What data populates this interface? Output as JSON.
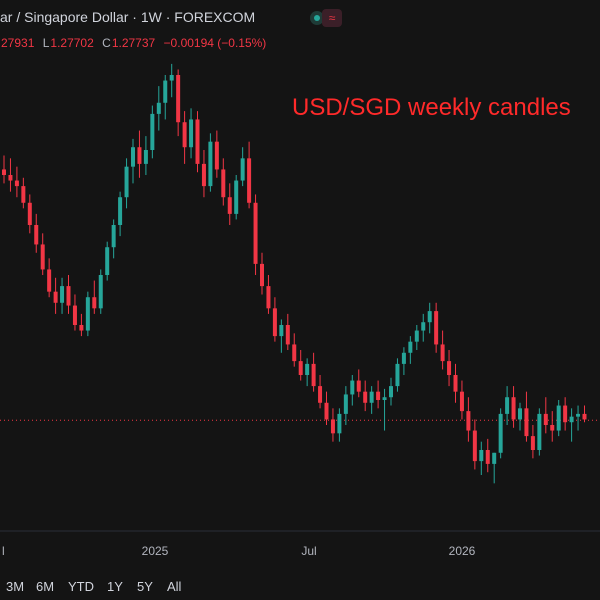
{
  "header": {
    "title": "ar / Singapore Dollar · 1W · FOREXCOM",
    "wave_icon": "≈",
    "ohlc": {
      "high_label": "",
      "high": "27931",
      "low_label": "L",
      "low": "1.27702",
      "close_label": "C",
      "close": "1.27737",
      "change": "−0.00194 (−0.15%)"
    }
  },
  "annotation": "USD/SGD weekly candles",
  "colors": {
    "up": "#26a69a",
    "down": "#f23645",
    "annotation": "#ff2a2a",
    "background": "#141414"
  },
  "range_buttons": [
    "3M",
    "6M",
    "YTD",
    "1Y",
    "5Y",
    "All"
  ],
  "chart_data": {
    "type": "candlestick",
    "x_tick_labels": [
      "l",
      "2025",
      "Jul",
      "2026"
    ],
    "series": [
      {
        "candles": [
          [
            1.348,
            1.353,
            1.343,
            1.346
          ],
          [
            1.346,
            1.352,
            1.34,
            1.344
          ],
          [
            1.344,
            1.349,
            1.338,
            1.342
          ],
          [
            1.342,
            1.345,
            1.334,
            1.336
          ],
          [
            1.336,
            1.339,
            1.325,
            1.328
          ],
          [
            1.328,
            1.332,
            1.318,
            1.321
          ],
          [
            1.321,
            1.325,
            1.31,
            1.312
          ],
          [
            1.312,
            1.316,
            1.302,
            1.304
          ],
          [
            1.304,
            1.309,
            1.296,
            1.3
          ],
          [
            1.3,
            1.309,
            1.296,
            1.306
          ],
          [
            1.306,
            1.31,
            1.296,
            1.299
          ],
          [
            1.299,
            1.303,
            1.29,
            1.292
          ],
          [
            1.292,
            1.296,
            1.288,
            1.29
          ],
          [
            1.29,
            1.304,
            1.288,
            1.302
          ],
          [
            1.302,
            1.308,
            1.296,
            1.298
          ],
          [
            1.298,
            1.312,
            1.296,
            1.31
          ],
          [
            1.31,
            1.322,
            1.308,
            1.32
          ],
          [
            1.32,
            1.33,
            1.316,
            1.328
          ],
          [
            1.328,
            1.34,
            1.324,
            1.338
          ],
          [
            1.338,
            1.352,
            1.334,
            1.349
          ],
          [
            1.349,
            1.359,
            1.343,
            1.356
          ],
          [
            1.356,
            1.362,
            1.345,
            1.35
          ],
          [
            1.35,
            1.36,
            1.346,
            1.355
          ],
          [
            1.355,
            1.371,
            1.352,
            1.368
          ],
          [
            1.368,
            1.378,
            1.362,
            1.372
          ],
          [
            1.372,
            1.382,
            1.366,
            1.38
          ],
          [
            1.38,
            1.386,
            1.374,
            1.382
          ],
          [
            1.382,
            1.384,
            1.36,
            1.365
          ],
          [
            1.365,
            1.369,
            1.35,
            1.356
          ],
          [
            1.356,
            1.37,
            1.352,
            1.366
          ],
          [
            1.366,
            1.369,
            1.347,
            1.35
          ],
          [
            1.35,
            1.355,
            1.338,
            1.342
          ],
          [
            1.342,
            1.361,
            1.34,
            1.358
          ],
          [
            1.358,
            1.362,
            1.345,
            1.348
          ],
          [
            1.348,
            1.352,
            1.335,
            1.338
          ],
          [
            1.338,
            1.343,
            1.328,
            1.332
          ],
          [
            1.332,
            1.346,
            1.33,
            1.344
          ],
          [
            1.344,
            1.356,
            1.342,
            1.352
          ],
          [
            1.352,
            1.358,
            1.334,
            1.336
          ],
          [
            1.336,
            1.339,
            1.31,
            1.314
          ],
          [
            1.314,
            1.318,
            1.303,
            1.306
          ],
          [
            1.306,
            1.31,
            1.296,
            1.298
          ],
          [
            1.298,
            1.302,
            1.286,
            1.288
          ],
          [
            1.288,
            1.294,
            1.282,
            1.292
          ],
          [
            1.292,
            1.296,
            1.283,
            1.285
          ],
          [
            1.285,
            1.289,
            1.277,
            1.279
          ],
          [
            1.279,
            1.283,
            1.272,
            1.274
          ],
          [
            1.274,
            1.28,
            1.27,
            1.278
          ],
          [
            1.278,
            1.282,
            1.268,
            1.27
          ],
          [
            1.27,
            1.274,
            1.262,
            1.264
          ],
          [
            1.264,
            1.268,
            1.256,
            1.258
          ],
          [
            1.258,
            1.262,
            1.25,
            1.253
          ],
          [
            1.253,
            1.262,
            1.25,
            1.26
          ],
          [
            1.26,
            1.27,
            1.256,
            1.267
          ],
          [
            1.267,
            1.274,
            1.263,
            1.272
          ],
          [
            1.272,
            1.276,
            1.266,
            1.268
          ],
          [
            1.268,
            1.272,
            1.261,
            1.264
          ],
          [
            1.264,
            1.27,
            1.26,
            1.268
          ],
          [
            1.268,
            1.272,
            1.262,
            1.265
          ],
          [
            1.265,
            1.269,
            1.254,
            1.266
          ],
          [
            1.266,
            1.273,
            1.263,
            1.27
          ],
          [
            1.27,
            1.28,
            1.268,
            1.278
          ],
          [
            1.278,
            1.284,
            1.274,
            1.282
          ],
          [
            1.282,
            1.288,
            1.278,
            1.286
          ],
          [
            1.286,
            1.292,
            1.283,
            1.29
          ],
          [
            1.29,
            1.296,
            1.286,
            1.293
          ],
          [
            1.293,
            1.3,
            1.289,
            1.297
          ],
          [
            1.297,
            1.3,
            1.282,
            1.285
          ],
          [
            1.285,
            1.29,
            1.276,
            1.279
          ],
          [
            1.279,
            1.283,
            1.27,
            1.274
          ],
          [
            1.274,
            1.278,
            1.264,
            1.268
          ],
          [
            1.268,
            1.272,
            1.258,
            1.261
          ],
          [
            1.261,
            1.266,
            1.25,
            1.254
          ],
          [
            1.254,
            1.258,
            1.24,
            1.243
          ],
          [
            1.243,
            1.25,
            1.238,
            1.247
          ],
          [
            1.247,
            1.251,
            1.239,
            1.242
          ],
          [
            1.242,
            1.246,
            1.235,
            1.246
          ],
          [
            1.246,
            1.262,
            1.244,
            1.26
          ],
          [
            1.26,
            1.27,
            1.256,
            1.266
          ],
          [
            1.266,
            1.27,
            1.255,
            1.258
          ],
          [
            1.258,
            1.264,
            1.254,
            1.262
          ],
          [
            1.262,
            1.268,
            1.25,
            1.252
          ],
          [
            1.252,
            1.256,
            1.244,
            1.247
          ],
          [
            1.247,
            1.262,
            1.245,
            1.26
          ],
          [
            1.26,
            1.266,
            1.253,
            1.256
          ],
          [
            1.256,
            1.261,
            1.25,
            1.254
          ],
          [
            1.254,
            1.265,
            1.252,
            1.263
          ],
          [
            1.263,
            1.266,
            1.254,
            1.257
          ],
          [
            1.257,
            1.262,
            1.25,
            1.259
          ],
          [
            1.259,
            1.263,
            1.254,
            1.26
          ],
          [
            1.26,
            1.263,
            1.257,
            1.258
          ]
        ]
      }
    ],
    "price_range": [
      1.229,
      1.391
    ],
    "reference_line": 1.2577,
    "grid": false
  }
}
